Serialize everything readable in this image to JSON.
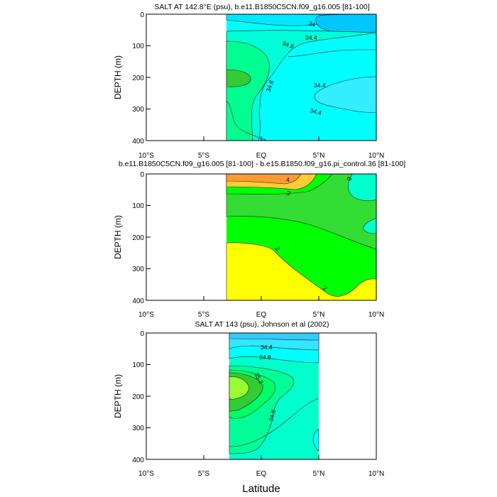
{
  "x_label": "Latitude",
  "chart_data": [
    {
      "type": "contour",
      "title": "SALT AT 142.8°E (psu), b.e11.B1850C5CN.f09_g16.005 [81-100]",
      "xlabel": "",
      "ylabel": "DEPTH (m)",
      "xlim": [
        -10,
        10
      ],
      "ylim": [
        400,
        0
      ],
      "xticks": [
        "10°S",
        "5°S",
        "EQ",
        "5°N",
        "10°N"
      ],
      "yticks": [
        "0",
        "100",
        "200",
        "300",
        "400"
      ],
      "data_xrange": [
        -3,
        10
      ],
      "contour_labels": [
        "34",
        "34.4",
        "34.8",
        "34.8",
        "34.4",
        "34.4"
      ],
      "colors": [
        "#00e8ff",
        "#00c8ff",
        "#00ffd8",
        "#00ff90",
        "#33cc33"
      ]
    },
    {
      "type": "contour",
      "title": "b.e11.B1850C5CN.f09_g16.005 [81-100] - b.e15.B1850.f09_g16.pi_control.36 [81-100]",
      "xlabel": "",
      "ylabel": "DEPTH (m)",
      "xlim": [
        -10,
        10
      ],
      "ylim": [
        400,
        0
      ],
      "xticks": [
        "10°S",
        "5°S",
        "EQ",
        "5°N",
        "10°N"
      ],
      "yticks": [
        "0",
        "100",
        "200",
        "300",
        "400"
      ],
      "data_xrange": [
        -3,
        10
      ],
      "contour_labels": [
        "4",
        ".2",
        "0",
        ".2",
        "2"
      ],
      "colors": [
        "#ffff00",
        "#00ff00",
        "#33dd33",
        "#00ffcc",
        "#ff9933"
      ]
    },
    {
      "type": "contour",
      "title": "SALT AT 143 (psu), Johnson et al (2002)",
      "xlabel": "",
      "ylabel": "DEPTH (m)",
      "xlim": [
        -10,
        10
      ],
      "ylim": [
        400,
        0
      ],
      "xticks": [
        "10°S",
        "5°S",
        "EQ",
        "5°N",
        "10°N"
      ],
      "yticks": [
        "0",
        "100",
        "200",
        "300",
        "400"
      ],
      "data_xrange": [
        -2.8,
        5
      ],
      "contour_labels": [
        "34.4",
        "34.8",
        "35.2",
        "34.8"
      ],
      "colors": [
        "#00ffff",
        "#00ffcc",
        "#00ff99",
        "#00ff66",
        "#33cc33",
        "#99ff33"
      ]
    }
  ]
}
